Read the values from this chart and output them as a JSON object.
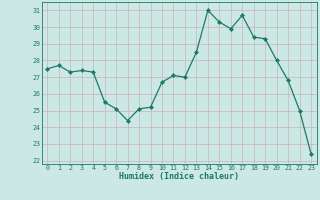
{
  "x": [
    0,
    1,
    2,
    3,
    4,
    5,
    6,
    7,
    8,
    9,
    10,
    11,
    12,
    13,
    14,
    15,
    16,
    17,
    18,
    19,
    20,
    21,
    22,
    23
  ],
  "y": [
    27.5,
    27.7,
    27.3,
    27.4,
    27.3,
    25.5,
    25.1,
    24.4,
    25.1,
    25.2,
    26.7,
    27.1,
    27.0,
    28.5,
    31.0,
    30.3,
    29.9,
    30.7,
    29.4,
    29.3,
    28.0,
    26.8,
    25.0,
    22.4
  ],
  "xlabel": "Humidex (Indice chaleur)",
  "ylabel": "",
  "ylim": [
    21.8,
    31.5
  ],
  "xlim": [
    -0.5,
    23.5
  ],
  "line_color": "#1a7a6a",
  "marker_color": "#1a7a6a",
  "bg_color": "#cce8e4",
  "grid_color_v": "#c8a8a8",
  "grid_color_h": "#c8a8a8",
  "tick_color": "#1a7a6a",
  "label_color": "#1a7a6a",
  "yticks": [
    22,
    23,
    24,
    25,
    26,
    27,
    28,
    29,
    30,
    31
  ],
  "xticks": [
    0,
    1,
    2,
    3,
    4,
    5,
    6,
    7,
    8,
    9,
    10,
    11,
    12,
    13,
    14,
    15,
    16,
    17,
    18,
    19,
    20,
    21,
    22,
    23
  ]
}
